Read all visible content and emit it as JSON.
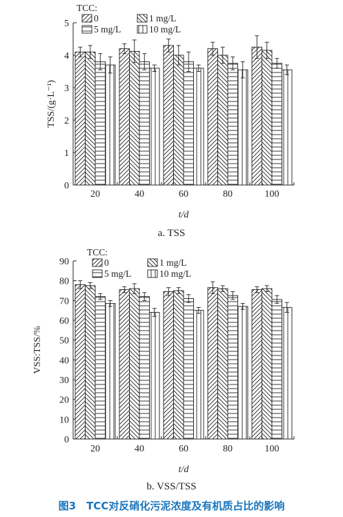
{
  "figure_caption": "图3　TCC对反硝化污泥浓度及有机质占比的影响",
  "legend": {
    "title": "TCC:",
    "items": [
      "0",
      "1 mg/L",
      "5 mg/L",
      "10 mg/L"
    ]
  },
  "colors": {
    "ink": "#231f20",
    "caption": "#1b75bb"
  },
  "chart_data": [
    {
      "type": "bar",
      "caption": "a. TSS",
      "xlabel": "t/d",
      "ylabel": "TSS/(g·L⁻¹)",
      "categories": [
        "20",
        "40",
        "60",
        "80",
        "100"
      ],
      "ylim": [
        0,
        5
      ],
      "yticks": [
        "0",
        "1",
        "2",
        "3",
        "4",
        "5"
      ],
      "legend_position": "top-left",
      "series": [
        {
          "name": "0",
          "pattern": "diag-up",
          "values": [
            4.1,
            4.2,
            4.3,
            4.2,
            4.25
          ],
          "errors": [
            0.15,
            0.15,
            0.2,
            0.2,
            0.35
          ]
        },
        {
          "name": "1 mg/L",
          "pattern": "diag-down",
          "values": [
            4.1,
            4.12,
            4.0,
            4.0,
            4.15
          ],
          "errors": [
            0.2,
            0.35,
            0.3,
            0.25,
            0.25
          ]
        },
        {
          "name": "5 mg/L",
          "pattern": "horizontal",
          "values": [
            3.8,
            3.8,
            3.8,
            3.75,
            3.75
          ],
          "errors": [
            0.25,
            0.25,
            0.3,
            0.2,
            0.15
          ]
        },
        {
          "name": "10 mg/L",
          "pattern": "vertical",
          "values": [
            3.7,
            3.6,
            3.6,
            3.55,
            3.55
          ],
          "errors": [
            0.25,
            0.1,
            0.1,
            0.25,
            0.15
          ]
        }
      ]
    },
    {
      "type": "bar",
      "caption": "b. VSS/TSS",
      "xlabel": "t/d",
      "ylabel": "VSS:TSS/%",
      "categories": [
        "20",
        "40",
        "60",
        "80",
        "100"
      ],
      "ylim": [
        0,
        90
      ],
      "yticks": [
        "0",
        "10",
        "20",
        "30",
        "40",
        "50",
        "60",
        "70",
        "80",
        "90"
      ],
      "legend_position": "top-left",
      "series": [
        {
          "name": "0",
          "pattern": "diag-up",
          "values": [
            78,
            75.5,
            74.5,
            76.5,
            75.5
          ],
          "errors": [
            2,
            1.5,
            2,
            3,
            1.5
          ]
        },
        {
          "name": "1 mg/L",
          "pattern": "diag-down",
          "values": [
            77.5,
            76,
            75,
            76,
            76
          ],
          "errors": [
            1.5,
            2.5,
            1.5,
            1.5,
            1.5
          ]
        },
        {
          "name": "5 mg/L",
          "pattern": "horizontal",
          "values": [
            72,
            72,
            71,
            72.5,
            70.5
          ],
          "errors": [
            1.5,
            2,
            2,
            2,
            2
          ]
        },
        {
          "name": "10 mg/L",
          "pattern": "vertical",
          "values": [
            68.5,
            64,
            65,
            67,
            66.5
          ],
          "errors": [
            1.5,
            2,
            1.5,
            1.5,
            2.5
          ]
        }
      ]
    }
  ]
}
